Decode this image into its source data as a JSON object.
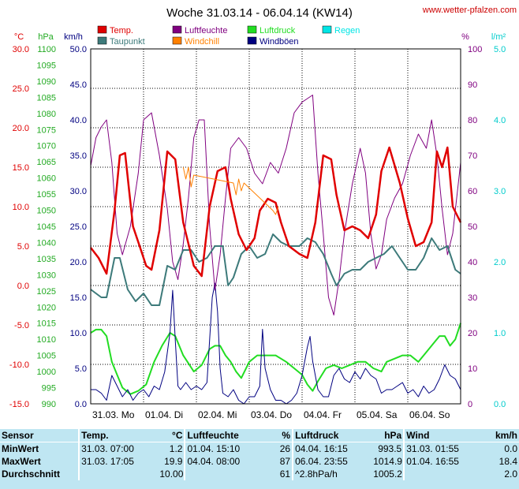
{
  "title": "Woche 31.03.14 - 06.04.14 (KW14)",
  "source": "www.wetter-pfalzen.com",
  "colors": {
    "temp": "#e00000",
    "dew": "#3d7a7a",
    "wind": "#000080",
    "gust": "#000080",
    "humidity": "#800080",
    "pressure": "#22dd22",
    "windchill": "#ff8000",
    "rain": "#00e5e5",
    "grid_dash": "#000000",
    "stats_bg": "#bfe6f2",
    "axis_temp": "#e00000",
    "axis_pressure": "#22aa22",
    "axis_wind": "#000080",
    "axis_hum": "#800080",
    "axis_rain": "#00cccc"
  },
  "chart_data": {
    "type": "line",
    "title": "Woche 31.03.14 - 06.04.14 (KW14)",
    "x_range": [
      0,
      7
    ],
    "x_labels": [
      "31.03. Mo",
      "01.04. Di",
      "02.04. Mi",
      "03.04. Do",
      "04.04. Fr",
      "05.04. Sa",
      "06.04. So"
    ],
    "axes": {
      "temp": {
        "unit": "°C",
        "ylim": [
          -15,
          30
        ],
        "ticks": [
          "30.0",
          "25.0",
          "20.0",
          "15.0",
          "10.0",
          "5.0",
          "0.0",
          "-5.0",
          "-10.0",
          "-15.0"
        ]
      },
      "pressure": {
        "unit": "hPa",
        "ylim": [
          990,
          1100
        ],
        "ticks": [
          "1100",
          "1095",
          "1090",
          "1085",
          "1080",
          "1075",
          "1070",
          "1065",
          "1060",
          "1055",
          "1050",
          "1045",
          "1040",
          "1035",
          "1030",
          "1025",
          "1020",
          "1015",
          "1010",
          "1005",
          "1000",
          "995",
          "990"
        ]
      },
      "wind": {
        "unit": "km/h",
        "ylim": [
          0,
          50
        ],
        "ticks": [
          "50.0",
          "45.0",
          "40.0",
          "35.0",
          "30.0",
          "25.0",
          "20.0",
          "15.0",
          "10.0",
          "5.0",
          "0.0"
        ]
      },
      "humidity": {
        "unit": "%",
        "ylim": [
          0,
          100
        ],
        "ticks": [
          "100",
          "90",
          "80",
          "70",
          "60",
          "50",
          "40",
          "30",
          "20",
          "10",
          "0"
        ]
      },
      "rain": {
        "unit": "l/m²",
        "ylim": [
          0,
          5
        ],
        "ticks": [
          "5.0",
          "4.0",
          "3.0",
          "2.0",
          "1.0",
          "0.0"
        ]
      }
    },
    "legend": [
      {
        "name": "Temp.",
        "color": "#e00000"
      },
      {
        "name": "Luftfeuchte",
        "color": "#800080"
      },
      {
        "name": "Luftdruck",
        "color": "#22dd22"
      },
      {
        "name": "Regen",
        "color": "#00e5e5"
      },
      {
        "name": "Taupunkt",
        "color": "#3d7a7a"
      },
      {
        "name": "Windchill",
        "color": "#ff8000"
      },
      {
        "name": "Windböen",
        "color": "#000080"
      }
    ],
    "series": [
      {
        "name": "Temp.",
        "axis": "temp",
        "x": [
          0,
          0.15,
          0.3,
          0.45,
          0.55,
          0.65,
          0.8,
          0.95,
          1.05,
          1.15,
          1.3,
          1.45,
          1.6,
          1.75,
          1.95,
          2.1,
          2.25,
          2.4,
          2.55,
          2.65,
          2.8,
          2.95,
          3.1,
          3.2,
          3.35,
          3.5,
          3.6,
          3.75,
          3.95,
          4.1,
          4.25,
          4.4,
          4.55,
          4.65,
          4.8,
          4.95,
          5.1,
          5.25,
          5.4,
          5.5,
          5.65,
          5.85,
          6.0,
          6.15,
          6.3,
          6.45,
          6.55,
          6.65,
          6.75,
          6.85,
          7.0
        ],
        "y": [
          4.8,
          3.5,
          1.5,
          9.5,
          16.5,
          16.8,
          7.5,
          4.5,
          2.5,
          2.0,
          7.0,
          17.0,
          16.0,
          8.0,
          2.5,
          1.2,
          10.0,
          14.5,
          15.0,
          11.0,
          6.5,
          4.5,
          6.0,
          9.5,
          11.0,
          10.5,
          8.0,
          5.0,
          4.0,
          3.5,
          8.0,
          16.5,
          16.0,
          11.5,
          7.0,
          7.5,
          7.0,
          6.0,
          9.0,
          14.5,
          17.5,
          13.0,
          8.5,
          5.0,
          5.5,
          8.0,
          17.0,
          15.0,
          17.5,
          10.0,
          8.0
        ]
      },
      {
        "name": "Taupunkt",
        "axis": "temp",
        "x": [
          0,
          0.2,
          0.3,
          0.45,
          0.55,
          0.7,
          0.85,
          1.0,
          1.15,
          1.3,
          1.45,
          1.6,
          1.75,
          1.9,
          2.05,
          2.2,
          2.35,
          2.5,
          2.6,
          2.7,
          2.85,
          3.0,
          3.15,
          3.3,
          3.45,
          3.6,
          3.75,
          3.95,
          4.1,
          4.25,
          4.4,
          4.55,
          4.65,
          4.8,
          4.95,
          5.1,
          5.25,
          5.4,
          5.55,
          5.7,
          5.85,
          6.0,
          6.15,
          6.3,
          6.45,
          6.6,
          6.75,
          6.9,
          7.0
        ],
        "y": [
          -0.5,
          -1.5,
          -1.5,
          3.5,
          3.5,
          -0.5,
          -2.0,
          -1.0,
          -2.5,
          -2.5,
          2.5,
          2.0,
          4.5,
          4.5,
          3.0,
          3.5,
          5.0,
          5.0,
          0.0,
          1.0,
          4.0,
          5.0,
          3.5,
          4.0,
          6.5,
          5.5,
          5.0,
          5.0,
          6.0,
          5.5,
          4.0,
          1.5,
          0.0,
          1.5,
          2.0,
          2.0,
          3.0,
          3.5,
          4.0,
          5.0,
          3.5,
          2.0,
          2.0,
          3.5,
          6.0,
          4.5,
          5.0,
          2.0,
          1.5
        ]
      },
      {
        "name": "Luftfeuchte",
        "axis": "humidity",
        "x": [
          0,
          0.1,
          0.2,
          0.3,
          0.4,
          0.5,
          0.6,
          0.75,
          0.9,
          1.0,
          1.15,
          1.3,
          1.45,
          1.55,
          1.65,
          1.75,
          1.85,
          1.95,
          2.05,
          2.15,
          2.25,
          2.35,
          2.45,
          2.55,
          2.65,
          2.8,
          2.95,
          3.1,
          3.25,
          3.4,
          3.55,
          3.7,
          3.85,
          4.0,
          4.1,
          4.2,
          4.3,
          4.4,
          4.5,
          4.6,
          4.7,
          4.8,
          4.95,
          5.1,
          5.2,
          5.3,
          5.4,
          5.5,
          5.6,
          5.75,
          5.9,
          6.05,
          6.2,
          6.35,
          6.45,
          6.55,
          6.65,
          6.75,
          6.85,
          7.0
        ],
        "y": [
          67,
          75,
          78,
          80,
          68,
          48,
          42,
          50,
          65,
          80,
          82,
          70,
          55,
          40,
          35,
          45,
          58,
          75,
          80,
          80,
          50,
          32,
          42,
          58,
          72,
          75,
          72,
          65,
          62,
          68,
          65,
          72,
          82,
          85,
          86,
          87,
          65,
          48,
          30,
          25,
          35,
          48,
          62,
          72,
          65,
          48,
          38,
          42,
          52,
          58,
          62,
          70,
          76,
          72,
          80,
          70,
          55,
          42,
          48,
          68
        ]
      },
      {
        "name": "Windchill",
        "axis": "temp",
        "x": [
          1.75,
          1.8,
          1.85,
          1.9,
          1.95,
          2.7,
          2.75,
          2.8,
          2.85,
          2.9,
          3.45,
          3.5,
          3.55
        ],
        "y": [
          15.0,
          13.5,
          15.0,
          12.5,
          14.0,
          13.0,
          11.5,
          13.5,
          12.0,
          13.0,
          9.5,
          9.0,
          10.0
        ]
      },
      {
        "name": "Luftdruck",
        "axis": "pressure",
        "x": [
          0,
          0.1,
          0.2,
          0.3,
          0.4,
          0.5,
          0.6,
          0.75,
          0.9,
          1.05,
          1.2,
          1.35,
          1.5,
          1.6,
          1.75,
          1.95,
          2.1,
          2.25,
          2.35,
          2.45,
          2.55,
          2.65,
          2.75,
          2.85,
          3.0,
          3.15,
          3.3,
          3.5,
          3.7,
          3.85,
          4.0,
          4.1,
          4.2,
          4.3,
          4.45,
          4.6,
          4.75,
          4.9,
          5.05,
          5.2,
          5.35,
          5.5,
          5.6,
          5.75,
          5.9,
          6.05,
          6.2,
          6.35,
          6.5,
          6.6,
          6.7,
          6.8,
          6.9,
          7.0
        ],
        "y": [
          1012,
          1013,
          1013,
          1011,
          1003,
          999,
          995,
          993,
          994,
          996,
          1003,
          1008,
          1012,
          1011,
          1005,
          1000,
          1002,
          1007,
          1008,
          1008,
          1005,
          1003,
          1000,
          998,
          1003,
          1005,
          1005,
          1005,
          1003,
          1001,
          999,
          996,
          994,
          997,
          1001,
          1002,
          1001,
          1002,
          1003,
          1003,
          1001,
          1000,
          1003,
          1004,
          1005,
          1005,
          1003,
          1006,
          1009,
          1011,
          1011,
          1008,
          1010,
          1015
        ]
      },
      {
        "name": "Windböen",
        "axis": "wind",
        "x": [
          0,
          0.1,
          0.2,
          0.3,
          0.4,
          0.5,
          0.6,
          0.7,
          0.8,
          0.9,
          1.0,
          1.1,
          1.2,
          1.3,
          1.4,
          1.5,
          1.55,
          1.6,
          1.65,
          1.7,
          1.8,
          1.9,
          2.0,
          2.1,
          2.2,
          2.3,
          2.35,
          2.4,
          2.45,
          2.5,
          2.6,
          2.7,
          2.8,
          2.9,
          3.0,
          3.1,
          3.2,
          3.25,
          3.3,
          3.4,
          3.5,
          3.6,
          3.7,
          3.8,
          3.9,
          4.0,
          4.1,
          4.15,
          4.2,
          4.3,
          4.4,
          4.5,
          4.6,
          4.7,
          4.8,
          4.9,
          5.0,
          5.1,
          5.2,
          5.3,
          5.4,
          5.5,
          5.6,
          5.7,
          5.8,
          5.9,
          6.0,
          6.1,
          6.2,
          6.3,
          6.4,
          6.5,
          6.6,
          6.7,
          6.8,
          6.9,
          7.0
        ],
        "y": [
          2.0,
          2.0,
          1.5,
          0.5,
          4.0,
          2.5,
          1.0,
          2.0,
          0.5,
          1.5,
          2.0,
          1.0,
          2.5,
          2.0,
          4.5,
          10.0,
          16.0,
          9.0,
          2.5,
          2.0,
          3.0,
          2.0,
          2.5,
          2.0,
          3.0,
          15.0,
          17.0,
          13.0,
          5.0,
          1.5,
          1.0,
          2.0,
          0.5,
          0.0,
          1.0,
          1.0,
          2.5,
          10.5,
          5.0,
          2.0,
          0.5,
          0.5,
          0.0,
          0.5,
          1.5,
          4.0,
          8.0,
          9.5,
          6.0,
          2.0,
          1.0,
          1.0,
          4.0,
          5.0,
          3.5,
          3.0,
          4.5,
          3.5,
          5.0,
          4.0,
          3.5,
          1.5,
          2.0,
          2.0,
          2.5,
          3.0,
          1.5,
          2.0,
          1.0,
          2.5,
          1.5,
          2.0,
          3.5,
          5.5,
          4.0,
          3.5,
          2.0
        ]
      }
    ]
  },
  "stats": {
    "header": {
      "sensor": "Sensor",
      "temp": "Temp.",
      "temp_unit": "°C",
      "hum": "Luftfeuchte",
      "hum_unit": "%",
      "press": "Luftdruck",
      "press_unit": "hPa",
      "wind": "Wind",
      "wind_unit": "km/h"
    },
    "rows": [
      {
        "label": "MinWert",
        "temp_time": "31.03.  07:00",
        "temp_val": "1.2",
        "hum_time": "01.04.  15:10",
        "hum_val": "26",
        "press_time": "04.04.  16:15",
        "press_val": "993.5",
        "wind_time": "31.03.  01:55",
        "wind_val": "0.0"
      },
      {
        "label": "MaxWert",
        "temp_time": "31.03.  17:05",
        "temp_val": "19.9",
        "hum_time": "04.04.  08:00",
        "hum_val": "87",
        "press_time": "06.04.  23:55",
        "press_val": "1014.9",
        "wind_time": "01.04.  16:55",
        "wind_val": "18.4"
      },
      {
        "label": "Durchschnitt",
        "temp_time": "",
        "temp_val": "10.00",
        "hum_time": "",
        "hum_val": "61",
        "press_time": "^2.8hPa/h",
        "press_val": "1005.2",
        "wind_time": "",
        "wind_val": "2.0"
      }
    ]
  }
}
